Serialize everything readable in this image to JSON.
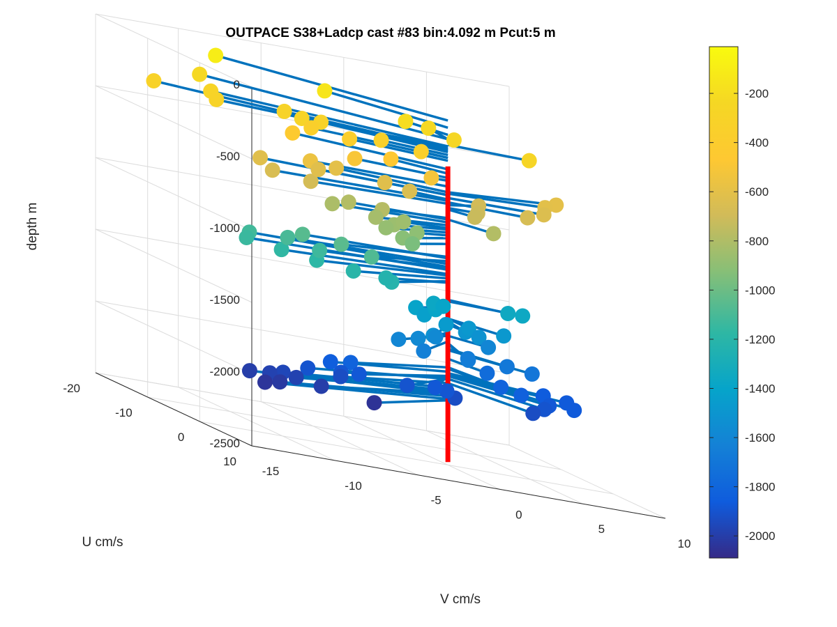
{
  "chart_data": {
    "type": "scatter",
    "title": "OUTPACE S38+Ladcp cast #83 bin:4.092 m  Pcut:5 m",
    "xlabel": "V cm/s",
    "ylabel": "U cm/s",
    "zlabel": "depth m",
    "xlim": [
      -15,
      10
    ],
    "ylim": [
      -20,
      10
    ],
    "zlim": [
      -2500,
      0
    ],
    "x_ticks": [
      -15,
      -10,
      -5,
      0,
      5,
      10
    ],
    "y_ticks": [
      -20,
      -10,
      0,
      10
    ],
    "z_ticks": [
      0,
      -500,
      -1000,
      -1500,
      -2000,
      -2500
    ],
    "x_tick_labels": [
      "-15",
      "-10",
      "-5",
      "0",
      "5",
      "10"
    ],
    "y_tick_labels": [
      "-20",
      "-10",
      "0",
      "10"
    ],
    "z_tick_labels": [
      "0",
      "-500",
      "-1000",
      "-1500",
      "-2000",
      "-2500"
    ],
    "grid": true,
    "colorbar": {
      "colormap": "parula",
      "range": [
        -2090,
        -10
      ],
      "ticks": [
        -200,
        -400,
        -600,
        -800,
        -1000,
        -1200,
        -1400,
        -1600,
        -1800,
        -2000
      ],
      "tick_labels": [
        "-200",
        "-400",
        "-600",
        "-800",
        "-1000",
        "-1200",
        "-1400",
        "-1600",
        "-1800",
        "-2000"
      ]
    },
    "stem_color": "#0072bd",
    "vertical_line_color": "#ff0000",
    "profile_depth_range": [
      -420,
      -2480
    ],
    "points": [
      {
        "v": -9.0,
        "u": -16.0,
        "z": -100
      },
      {
        "v": -4.3,
        "u": -10.0,
        "z": -150
      },
      {
        "v": -1.3,
        "u": -4.0,
        "z": -200
      },
      {
        "v": 0.4,
        "u": -5.0,
        "z": -230
      },
      {
        "v": 1.0,
        "u": -2.0,
        "z": -250
      },
      {
        "v": -10.6,
        "u": -14.0,
        "z": -230
      },
      {
        "v": -11.5,
        "u": -9.0,
        "z": -280
      },
      {
        "v": -14.0,
        "u": -12.0,
        "z": -310
      },
      {
        "v": -12.1,
        "u": -6.0,
        "z": -300
      },
      {
        "v": -8.2,
        "u": -2.0,
        "z": -285
      },
      {
        "v": -8.0,
        "u": -6.0,
        "z": -300
      },
      {
        "v": -6.1,
        "u": -5.0,
        "z": -320
      },
      {
        "v": -3.4,
        "u": -2.0,
        "z": -340
      },
      {
        "v": -1.3,
        "u": -1.0,
        "z": -360
      },
      {
        "v": -7.0,
        "u": -4.0,
        "z": -360
      },
      {
        "v": 4.6,
        "u": 1.0,
        "z": -270
      },
      {
        "v": -5.0,
        "u": -3.0,
        "z": -380
      },
      {
        "v": -7.5,
        "u": -6.0,
        "z": -440
      },
      {
        "v": -5.0,
        "u": -2.0,
        "z": -500
      },
      {
        "v": -2.5,
        "u": -3.0,
        "z": -470
      },
      {
        "v": -1.0,
        "u": 0.0,
        "z": -520
      },
      {
        "v": -8.0,
        "u": -1.0,
        "z": -560
      },
      {
        "v": -10.4,
        "u": -3.0,
        "z": -620
      },
      {
        "v": -10.6,
        "u": 0.0,
        "z": -660
      },
      {
        "v": -8.6,
        "u": 1.0,
        "z": -680
      },
      {
        "v": -7.2,
        "u": -2.0,
        "z": -620
      },
      {
        "v": -5.8,
        "u": -3.0,
        "z": -600
      },
      {
        "v": -3.5,
        "u": -1.0,
        "z": -620
      },
      {
        "v": -2.0,
        "u": -1.0,
        "z": -650
      },
      {
        "v": 7.8,
        "u": -4.0,
        "z": -600
      },
      {
        "v": 6.5,
        "u": -2.0,
        "z": -610
      },
      {
        "v": 5.8,
        "u": 0.0,
        "z": -640
      },
      {
        "v": 4.5,
        "u": 1.0,
        "z": -670
      },
      {
        "v": 2.8,
        "u": -3.0,
        "z": -690
      },
      {
        "v": 1.8,
        "u": 0.0,
        "z": -710
      },
      {
        "v": 1.0,
        "u": 2.0,
        "z": -720
      },
      {
        "v": 1.5,
        "u": 4.0,
        "z": -790
      },
      {
        "v": -4.6,
        "u": 2.0,
        "z": -780
      },
      {
        "v": -6.0,
        "u": 0.0,
        "z": -790
      },
      {
        "v": -7.3,
        "u": 1.0,
        "z": -810
      },
      {
        "v": -5.3,
        "u": 3.0,
        "z": -830
      },
      {
        "v": -4.2,
        "u": 3.0,
        "z": -860
      },
      {
        "v": -3.0,
        "u": 1.0,
        "z": -850
      },
      {
        "v": -5.0,
        "u": 4.0,
        "z": -880
      },
      {
        "v": -2.5,
        "u": 2.0,
        "z": -900
      },
      {
        "v": -4.3,
        "u": 5.0,
        "z": -920
      },
      {
        "v": -3.4,
        "u": 4.0,
        "z": -960
      },
      {
        "v": -9.1,
        "u": 1.0,
        "z": -1060
      },
      {
        "v": -7.7,
        "u": 4.0,
        "z": -1050
      },
      {
        "v": -6.5,
        "u": 6.0,
        "z": -1080
      },
      {
        "v": -12.0,
        "u": 0.0,
        "z": -1120
      },
      {
        "v": -12.8,
        "u": 2.0,
        "z": -1140
      },
      {
        "v": -11.0,
        "u": 3.0,
        "z": -1170
      },
      {
        "v": -9.5,
        "u": 5.0,
        "z": -1180
      },
      {
        "v": -10.0,
        "u": 1.0,
        "z": -1100
      },
      {
        "v": -8.7,
        "u": 3.0,
        "z": -1130
      },
      {
        "v": -7.6,
        "u": 6.0,
        "z": -1200
      },
      {
        "v": -5.6,
        "u": 7.0,
        "z": -1220
      },
      {
        "v": -5.0,
        "u": 4.0,
        "z": -1230
      },
      {
        "v": 1.8,
        "u": 5.0,
        "z": -1480
      },
      {
        "v": 3.0,
        "u": 2.0,
        "z": -1350
      },
      {
        "v": 4.2,
        "u": 1.0,
        "z": -1360
      },
      {
        "v": -3.2,
        "u": 4.0,
        "z": -1400
      },
      {
        "v": -3.0,
        "u": 5.0,
        "z": -1430
      },
      {
        "v": -2.0,
        "u": 6.0,
        "z": -1460
      },
      {
        "v": -2.0,
        "u": 4.0,
        "z": -1390
      },
      {
        "v": -1.5,
        "u": 2.0,
        "z": -1370
      },
      {
        "v": -0.5,
        "u": 5.0,
        "z": -1500
      },
      {
        "v": 0.0,
        "u": 4.0,
        "z": -1480
      },
      {
        "v": 0.3,
        "u": 5.0,
        "z": -1520
      },
      {
        "v": -0.6,
        "u": 1.0,
        "z": -1390
      },
      {
        "v": -3.4,
        "u": 8.0,
        "z": -1530
      },
      {
        "v": -4.0,
        "u": 7.0,
        "z": -1580
      },
      {
        "v": -5.5,
        "u": 8.0,
        "z": -1600
      },
      {
        "v": -4.3,
        "u": 9.0,
        "z": -1640
      },
      {
        "v": -1.6,
        "u": 9.0,
        "z": -1650
      },
      {
        "v": -1.0,
        "u": 7.0,
        "z": -1660
      },
      {
        "v": -2.0,
        "u": 4.0,
        "z": -1580
      },
      {
        "v": 1.5,
        "u": 3.0,
        "z": -1600
      },
      {
        "v": 2.0,
        "u": 5.0,
        "z": -1690
      },
      {
        "v": 3.2,
        "u": 6.0,
        "z": -1700
      },
      {
        "v": 1.6,
        "u": 9.0,
        "z": -1830
      },
      {
        "v": 1.0,
        "u": 7.0,
        "z": -1820
      },
      {
        "v": 0.8,
        "u": 5.0,
        "z": -1760
      },
      {
        "v": 4.8,
        "u": 9.0,
        "z": -1870
      },
      {
        "v": 5.6,
        "u": 5.0,
        "z": -1870
      },
      {
        "v": 4.5,
        "u": 4.0,
        "z": -1860
      },
      {
        "v": 3.6,
        "u": 8.0,
        "z": -1880
      },
      {
        "v": 3.0,
        "u": 9.0,
        "z": -1900
      },
      {
        "v": 2.0,
        "u": 10.0,
        "z": -1930
      },
      {
        "v": -2.4,
        "u": 9.0,
        "z": -1930
      },
      {
        "v": -2.9,
        "u": 9.0,
        "z": -1890
      },
      {
        "v": -3.6,
        "u": 9.0,
        "z": -1880
      },
      {
        "v": -5.3,
        "u": 9.0,
        "z": -1900
      },
      {
        "v": -8.4,
        "u": 8.0,
        "z": -1820
      },
      {
        "v": -8.2,
        "u": 9.0,
        "z": -1880
      },
      {
        "v": -9.3,
        "u": 9.0,
        "z": -1890
      },
      {
        "v": -9.3,
        "u": 7.0,
        "z": -1850
      },
      {
        "v": -11.3,
        "u": 9.0,
        "z": -1900
      },
      {
        "v": -12.8,
        "u": 9.0,
        "z": -1960
      },
      {
        "v": -13.6,
        "u": 9.0,
        "z": -1980
      },
      {
        "v": -14.5,
        "u": 8.0,
        "z": -2000
      },
      {
        "v": -14.2,
        "u": 10.0,
        "z": -2040
      },
      {
        "v": -13.3,
        "u": 10.0,
        "z": -2020
      },
      {
        "v": -12.0,
        "u": 9.0,
        "z": -1980
      },
      {
        "v": -10.8,
        "u": 10.0,
        "z": -2000
      },
      {
        "v": -9.0,
        "u": 8.0,
        "z": -1930
      },
      {
        "v": -7.6,
        "u": 10.0,
        "z": -2050
      }
    ]
  }
}
